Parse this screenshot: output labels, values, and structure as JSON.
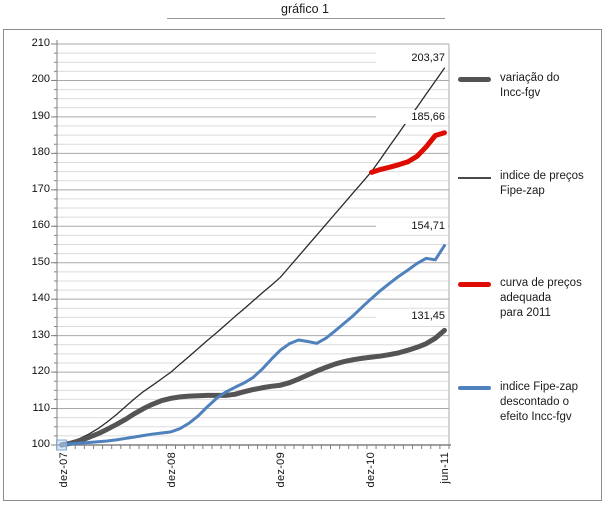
{
  "title": {
    "text": "gráfico 1"
  },
  "y_axis": {
    "labels": [
      "210",
      "200",
      "190",
      "180",
      "170",
      "160",
      "150",
      "140",
      "130",
      "120",
      "110",
      "100"
    ]
  },
  "x_axis": {
    "labels": [
      "dez-07",
      "dez-08",
      "dez-09",
      "dez-10",
      "jun-11"
    ]
  },
  "data_labels": [
    "203,37",
    "185,66",
    "154,71",
    "131,45"
  ],
  "legend": {
    "items": [
      {
        "label": "variação do Incc-fgv",
        "lines": [
          "variação do",
          "Incc-fgv"
        ],
        "marker_color": "#545454"
      },
      {
        "label": "indice de preços Fipe-zap",
        "lines": [
          "indice de preços",
          "Fipe-zap"
        ],
        "marker_color": "#4a4a4a"
      },
      {
        "label": "curva de preços adequada para 2011",
        "lines": [
          "curva de preços",
          "adequada",
          "para 2011"
        ],
        "marker_color": "#dd0b00"
      },
      {
        "label": "indice Fipe-zap descontado o efeito Incc-fgv",
        "lines": [
          "indice Fipe-zap",
          "descontado o",
          "efeito Incc-fgv"
        ],
        "marker_color": "#4f81bd"
      }
    ]
  },
  "chart_data": {
    "type": "line",
    "title": "gráfico 1",
    "xlabel": "",
    "ylabel": "",
    "ylim": [
      100,
      210
    ],
    "y_major_step": 10,
    "y_minor_step": 2.5,
    "grid": true,
    "legend_position": "right",
    "x_unit": "months from dez-07 to jun-11 (42 months, monthly points)",
    "x_tick_labels": [
      "dez-07",
      "dez-08",
      "dez-09",
      "dez-10",
      "jun-11"
    ],
    "x_tick_months": [
      0,
      12,
      24,
      36,
      42
    ],
    "series": [
      {
        "name": "variação do Incc-fgv",
        "color": "#545454",
        "stroke_width": 5,
        "start_month": 0,
        "end_label": "131,45",
        "end_value": 131.45,
        "values": [
          100,
          100.5,
          101.2,
          102.1,
          103.1,
          104.3,
          105.6,
          107.0,
          108.6,
          110.0,
          111.2,
          112.2,
          112.8,
          113.2,
          113.4,
          113.5,
          113.6,
          113.6,
          113.6,
          113.9,
          114.6,
          115.2,
          115.7,
          116.1,
          116.4,
          117.1,
          118.1,
          119.2,
          120.3,
          121.3,
          122.2,
          122.9,
          123.4,
          123.8,
          124.1,
          124.4,
          124.8,
          125.3,
          126.0,
          126.8,
          127.8,
          129.3,
          131.45
        ]
      },
      {
        "name": "indice de preços Fipe-zap",
        "color": "#2b2b2b",
        "stroke_width": 1.3,
        "start_month": 0,
        "end_label": "203,37",
        "end_value": 203.37,
        "values": [
          100,
          100.8,
          101.8,
          103.0,
          104.5,
          106.3,
          108.3,
          110.5,
          112.7,
          114.7,
          116.4,
          118.2,
          120.0,
          122.2,
          124.3,
          126.5,
          128.7,
          130.8,
          133.0,
          135.2,
          137.3,
          139.5,
          141.7,
          143.8,
          146.0,
          148.9,
          151.8,
          154.7,
          157.6,
          160.5,
          163.4,
          166.3,
          169.2,
          172.1,
          175.0,
          178.5,
          182.1,
          185.6,
          189.2,
          192.7,
          196.3,
          199.8,
          203.37
        ]
      },
      {
        "name": "curva de preços adequada para 2011",
        "color": "#dd0b00",
        "stroke_width": 5,
        "start_month": 34,
        "end_label": "185,66",
        "end_value": 185.66,
        "values": [
          174.8,
          175.6,
          176.2,
          176.9,
          177.7,
          179.2,
          181.8,
          184.9,
          185.66
        ]
      },
      {
        "name": "indice Fipe-zap descontado o efeito Incc-fgv",
        "color": "#4f81bd",
        "stroke_width": 3,
        "start_month": 0,
        "end_label": "154,71",
        "end_value": 154.71,
        "values": [
          100,
          100.3,
          100.5,
          100.7,
          100.9,
          101.1,
          101.4,
          101.8,
          102.2,
          102.6,
          103.0,
          103.3,
          103.6,
          104.5,
          106.0,
          108.0,
          110.5,
          112.8,
          114.5,
          115.8,
          117.0,
          118.5,
          120.8,
          123.5,
          126.0,
          127.8,
          128.8,
          128.4,
          127.9,
          129.3,
          131.3,
          133.4,
          135.5,
          137.9,
          140.2,
          142.4,
          144.4,
          146.3,
          148.0,
          149.8,
          151.2,
          150.8,
          154.71
        ]
      }
    ],
    "start_point_marker": {
      "series": "indice Fipe-zap descontado o efeito Incc-fgv",
      "month": 0,
      "value": 100,
      "shape": "square",
      "color": "#7da7d8"
    }
  }
}
